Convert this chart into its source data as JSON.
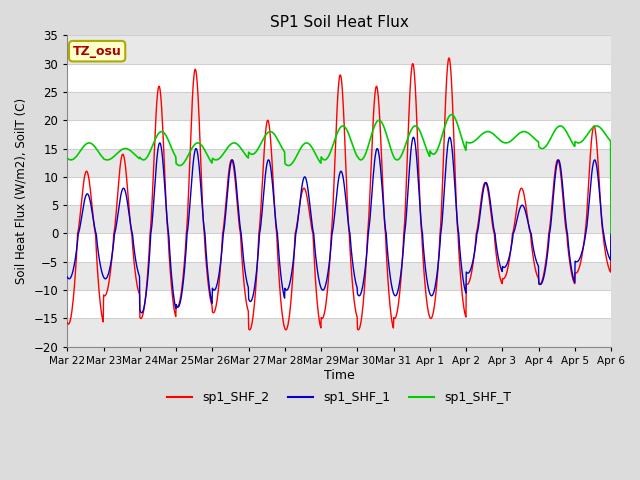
{
  "title": "SP1 Soil Heat Flux",
  "ylabel": "Soil Heat Flux (W/m2), SoilT (C)",
  "xlabel": "Time",
  "ylim": [
    -20,
    35
  ],
  "yticks": [
    -20,
    -15,
    -10,
    -5,
    0,
    5,
    10,
    15,
    20,
    25,
    30,
    35
  ],
  "bg_color": "#dcdcdc",
  "plot_bg_color": "#ffffff",
  "legend_labels": [
    "sp1_SHF_2",
    "sp1_SHF_1",
    "sp1_SHF_T"
  ],
  "legend_colors": [
    "#ff0000",
    "#0000cc",
    "#00cc00"
  ],
  "tz_label": "TZ_osu",
  "tz_box_color": "#ffffcc",
  "tz_border_color": "#aaaa00",
  "tz_text_color": "#aa0000",
  "x_tick_labels": [
    "Mar 22",
    "Mar 23",
    "Mar 24",
    "Mar 25",
    "Mar 26",
    "Mar 27",
    "Mar 28",
    "Mar 29",
    "Mar 30",
    "Mar 31",
    "Apr 1",
    "Apr 2",
    "Apr 3",
    "Apr 4",
    "Apr 5",
    "Apr 6"
  ],
  "n_days": 15,
  "grid_color": "#d0d0d0",
  "alt_band_color": "#e8e8e8"
}
